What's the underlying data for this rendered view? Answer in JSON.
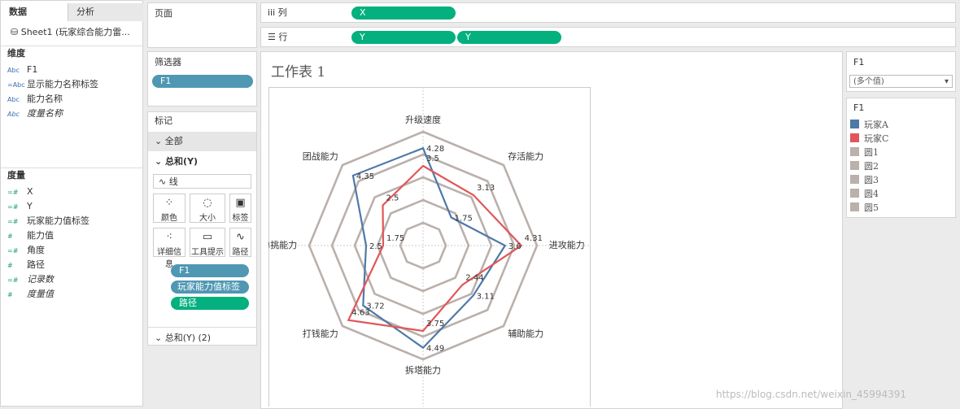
{
  "data_pane": {
    "tabs": [
      "数据",
      "分析"
    ],
    "source": "Sheet1 (玩家综合能力雷...",
    "dimensions_title": "维度",
    "dimensions": [
      {
        "icon": "Abc",
        "name": "F1"
      },
      {
        "icon": "=Abc",
        "name": "显示能力名称标签"
      },
      {
        "icon": "Abc",
        "name": "能力名称"
      },
      {
        "icon": "Abc",
        "name": "度量名称",
        "italic": true
      }
    ],
    "measures_title": "度量",
    "measures": [
      {
        "icon": "=#",
        "name": "X"
      },
      {
        "icon": "=#",
        "name": "Y"
      },
      {
        "icon": "=#",
        "name": "玩家能力值标签"
      },
      {
        "icon": "#",
        "name": "能力值"
      },
      {
        "icon": "=#",
        "name": "角度"
      },
      {
        "icon": "#",
        "name": "路径"
      },
      {
        "icon": "=#",
        "name": "记录数",
        "italic": true
      },
      {
        "icon": "#",
        "name": "度量值",
        "italic": true
      }
    ]
  },
  "pages_shelf": "页面",
  "filters": {
    "title": "筛选器",
    "pills": [
      "F1"
    ]
  },
  "marks": {
    "title": "标记",
    "all": "全部",
    "sum_y": "总和(Y)",
    "mark_type": "线",
    "buttons": [
      "颜色",
      "大小",
      "标签",
      "详细信息",
      "工具提示",
      "路径"
    ],
    "pills": [
      "F1",
      "玩家能力值标签",
      "路径"
    ],
    "sum_y2": "总和(Y) (2)"
  },
  "columns": {
    "label": "列",
    "pills": [
      "X"
    ]
  },
  "rows": {
    "label": "行",
    "pills": [
      "Y",
      "Y"
    ]
  },
  "filter_card": {
    "title": "F1",
    "value": "(多个值)"
  },
  "legend": {
    "title": "F1"
  },
  "watermark": "https://blog.csdn.net/weixin_45994391",
  "chart_data": {
    "type": "radar",
    "title": "工作表 1",
    "categories": [
      "升级速度",
      "存活能力",
      "进攻能力",
      "辅助能力",
      "拆塔能力",
      "打钱能力",
      "单挑能力",
      "团战能力"
    ],
    "rlim": [
      0,
      5
    ],
    "series": [
      {
        "name": "玩家A",
        "color": "#4e79a7",
        "values": [
          4.28,
          1.75,
          3.6,
          3.11,
          4.49,
          3.72,
          2.5,
          4.35
        ],
        "labels": true
      },
      {
        "name": "玩家C",
        "color": "#e15759",
        "values": [
          3.5,
          3.13,
          4.31,
          2.44,
          3.75,
          4.63,
          1.75,
          2.5
        ],
        "labels": true
      },
      {
        "name": "圆1",
        "color": "#bab0ac",
        "values": [
          1,
          1,
          1,
          1,
          1,
          1,
          1,
          1
        ]
      },
      {
        "name": "圆2",
        "color": "#bab0ac",
        "values": [
          2,
          2,
          2,
          2,
          2,
          2,
          2,
          2
        ]
      },
      {
        "name": "圆3",
        "color": "#bab0ac",
        "values": [
          3,
          3,
          3,
          3,
          3,
          3,
          3,
          3
        ]
      },
      {
        "name": "圆4",
        "color": "#bab0ac",
        "values": [
          4,
          4,
          4,
          4,
          4,
          4,
          4,
          4
        ]
      },
      {
        "name": "圆5",
        "color": "#bab0ac",
        "values": [
          5,
          5,
          5,
          5,
          5,
          5,
          5,
          5
        ]
      }
    ]
  }
}
